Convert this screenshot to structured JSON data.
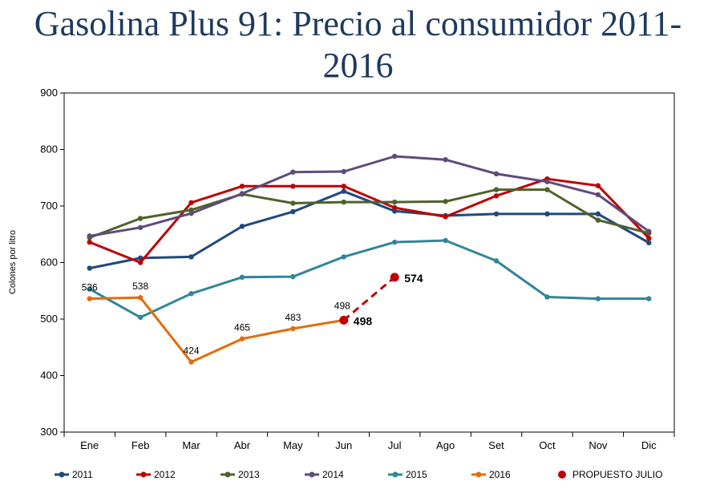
{
  "chart_data": {
    "type": "line",
    "title": "Gasolina Plus 91: Precio al consumidor 2011-2016",
    "title_lines": [
      "Gasolina Plus 91: Precio al consumidor 2011-",
      "2016"
    ],
    "xlabel": "",
    "ylabel": "Colones por litro",
    "categories": [
      "Ene",
      "Feb",
      "Mar",
      "Abr",
      "May",
      "Jun",
      "Jul",
      "Ago",
      "Set",
      "Oct",
      "Nov",
      "Dic"
    ],
    "ylim": [
      300,
      900
    ],
    "yticks": [
      300,
      400,
      500,
      600,
      700,
      800,
      900
    ],
    "grid": false,
    "legend_position": "bottom",
    "series": [
      {
        "name": "2011",
        "color": "#1f497d",
        "values": [
          590,
          608,
          610,
          664,
          690,
          726,
          691,
          683,
          686,
          686,
          686,
          635
        ]
      },
      {
        "name": "2012",
        "color": "#c00000",
        "values": [
          636,
          600,
          706,
          735,
          735,
          735,
          697,
          681,
          718,
          748,
          736,
          643
        ]
      },
      {
        "name": "2013",
        "color": "#4f6228",
        "values": [
          644,
          678,
          693,
          721,
          705,
          707,
          707,
          708,
          729,
          729,
          675,
          652
        ]
      },
      {
        "name": "2014",
        "color": "#604a7b",
        "values": [
          647,
          662,
          687,
          722,
          760,
          761,
          788,
          782,
          757,
          743,
          720,
          655
        ]
      },
      {
        "name": "2015",
        "color": "#31859c",
        "values": [
          553,
          503,
          545,
          574,
          575,
          610,
          636,
          639,
          603,
          539,
          536,
          536
        ]
      },
      {
        "name": "2016",
        "color": "#e46c0a",
        "values": [
          536,
          538,
          424,
          465,
          483,
          498,
          null,
          null,
          null,
          null,
          null,
          null
        ],
        "labels": [
          "536",
          "538",
          "424",
          "465",
          "483",
          "498",
          null,
          null,
          null,
          null,
          null,
          null
        ]
      },
      {
        "name": "PROPUESTO JULIO",
        "color": "#c00000",
        "dashed": true,
        "values": [
          null,
          null,
          null,
          null,
          null,
          498,
          574,
          null,
          null,
          null,
          null,
          null
        ],
        "labels": [
          null,
          null,
          null,
          null,
          null,
          "498",
          "574",
          null,
          null,
          null,
          null,
          null
        ]
      }
    ]
  }
}
